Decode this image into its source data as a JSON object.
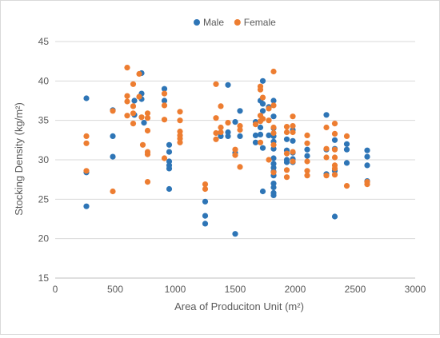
{
  "chart_data": {
    "type": "scatter",
    "title": "",
    "xlabel": "Area of Produciton Unit (m²)",
    "ylabel": "Stocking Density (kg/m²)",
    "xlim": [
      0,
      3000
    ],
    "ylim": [
      15,
      45
    ],
    "xticks": [
      "0",
      "500",
      "1000",
      "1500",
      "2000",
      "2500",
      "3000"
    ],
    "yticks": [
      "15",
      "20",
      "25",
      "30",
      "35",
      "40",
      "45"
    ],
    "grid": "horizontal",
    "legend_position": "top",
    "series": [
      {
        "name": "Male",
        "color": "#2e75b6",
        "points": [
          [
            260,
            37.8
          ],
          [
            260,
            28.4
          ],
          [
            260,
            24.1
          ],
          [
            480,
            36.3
          ],
          [
            480,
            33.0
          ],
          [
            480,
            30.4
          ],
          [
            660,
            37.5
          ],
          [
            660,
            35.7
          ],
          [
            720,
            41.0
          ],
          [
            720,
            38.4
          ],
          [
            720,
            37.7
          ],
          [
            740,
            34.7
          ],
          [
            910,
            39.0
          ],
          [
            910,
            37.5
          ],
          [
            950,
            31.9
          ],
          [
            950,
            31.0
          ],
          [
            950,
            29.8
          ],
          [
            950,
            29.3
          ],
          [
            950,
            28.9
          ],
          [
            950,
            26.3
          ],
          [
            1250,
            24.7
          ],
          [
            1250,
            22.9
          ],
          [
            1250,
            21.9
          ],
          [
            1380,
            33.0
          ],
          [
            1440,
            39.5
          ],
          [
            1440,
            33.5
          ],
          [
            1440,
            33.0
          ],
          [
            1500,
            34.8
          ],
          [
            1500,
            30.9
          ],
          [
            1500,
            20.6
          ],
          [
            1540,
            36.2
          ],
          [
            1540,
            33.0
          ],
          [
            1670,
            34.8
          ],
          [
            1670,
            33.1
          ],
          [
            1670,
            32.2
          ],
          [
            1710,
            37.5
          ],
          [
            1710,
            34.1
          ],
          [
            1710,
            33.2
          ],
          [
            1730,
            40.0
          ],
          [
            1730,
            37.1
          ],
          [
            1730,
            36.2
          ],
          [
            1730,
            31.5
          ],
          [
            1730,
            26.0
          ],
          [
            1780,
            36.7
          ],
          [
            1780,
            33.1
          ],
          [
            1820,
            37.5
          ],
          [
            1820,
            35.5
          ],
          [
            1820,
            34.0
          ],
          [
            1820,
            33.0
          ],
          [
            1820,
            32.3
          ],
          [
            1820,
            31.4
          ],
          [
            1820,
            30.2
          ],
          [
            1820,
            29.5
          ],
          [
            1820,
            29.0
          ],
          [
            1820,
            28.5
          ],
          [
            1820,
            28.0
          ],
          [
            1820,
            27.0
          ],
          [
            1820,
            26.5
          ],
          [
            1820,
            25.8
          ],
          [
            1820,
            25.5
          ],
          [
            1930,
            32.6
          ],
          [
            1930,
            31.2
          ],
          [
            1930,
            30.0
          ],
          [
            1930,
            29.7
          ],
          [
            1980,
            33.8
          ],
          [
            1980,
            32.4
          ],
          [
            1980,
            30.9
          ],
          [
            1980,
            30.1
          ],
          [
            1980,
            29.7
          ],
          [
            2100,
            31.3
          ],
          [
            2100,
            30.5
          ],
          [
            2260,
            35.7
          ],
          [
            2260,
            31.3
          ],
          [
            2260,
            28.2
          ],
          [
            2330,
            32.5
          ],
          [
            2330,
            31.4
          ],
          [
            2330,
            28.6
          ],
          [
            2330,
            22.8
          ],
          [
            2430,
            32.0
          ],
          [
            2430,
            31.3
          ],
          [
            2430,
            29.6
          ],
          [
            2600,
            31.2
          ],
          [
            2600,
            30.4
          ],
          [
            2600,
            29.3
          ],
          [
            2600,
            27.3
          ]
        ]
      },
      {
        "name": "Female",
        "color": "#ed7d31",
        "points": [
          [
            260,
            33.0
          ],
          [
            260,
            32.1
          ],
          [
            260,
            28.6
          ],
          [
            480,
            36.2
          ],
          [
            480,
            26.0
          ],
          [
            600,
            41.7
          ],
          [
            600,
            38.1
          ],
          [
            600,
            37.4
          ],
          [
            600,
            35.6
          ],
          [
            650,
            39.6
          ],
          [
            650,
            36.8
          ],
          [
            650,
            35.9
          ],
          [
            650,
            34.6
          ],
          [
            700,
            40.9
          ],
          [
            700,
            38.0
          ],
          [
            720,
            35.4
          ],
          [
            730,
            31.9
          ],
          [
            770,
            35.9
          ],
          [
            770,
            35.3
          ],
          [
            770,
            33.7
          ],
          [
            770,
            31.0
          ],
          [
            770,
            30.7
          ],
          [
            770,
            27.2
          ],
          [
            910,
            38.4
          ],
          [
            910,
            36.9
          ],
          [
            910,
            35.1
          ],
          [
            910,
            30.2
          ],
          [
            1040,
            36.1
          ],
          [
            1040,
            35.0
          ],
          [
            1040,
            33.6
          ],
          [
            1040,
            33.1
          ],
          [
            1040,
            32.7
          ],
          [
            1040,
            32.2
          ],
          [
            1250,
            26.9
          ],
          [
            1250,
            26.3
          ],
          [
            1340,
            39.6
          ],
          [
            1340,
            35.3
          ],
          [
            1340,
            33.4
          ],
          [
            1340,
            32.6
          ],
          [
            1380,
            36.8
          ],
          [
            1380,
            34.1
          ],
          [
            1380,
            33.5
          ],
          [
            1440,
            34.7
          ],
          [
            1500,
            31.3
          ],
          [
            1500,
            30.6
          ],
          [
            1540,
            34.3
          ],
          [
            1540,
            33.8
          ],
          [
            1540,
            29.1
          ],
          [
            1670,
            34.5
          ],
          [
            1710,
            39.3
          ],
          [
            1710,
            38.9
          ],
          [
            1710,
            35.6
          ],
          [
            1710,
            34.9
          ],
          [
            1710,
            32.2
          ],
          [
            1730,
            37.9
          ],
          [
            1730,
            35.2
          ],
          [
            1780,
            36.5
          ],
          [
            1780,
            35.0
          ],
          [
            1780,
            30.0
          ],
          [
            1820,
            41.2
          ],
          [
            1820,
            36.9
          ],
          [
            1820,
            34.1
          ],
          [
            1820,
            33.4
          ],
          [
            1820,
            31.9
          ],
          [
            1820,
            28.4
          ],
          [
            1930,
            34.2
          ],
          [
            1930,
            33.5
          ],
          [
            1930,
            30.8
          ],
          [
            1930,
            28.7
          ],
          [
            1930,
            27.8
          ],
          [
            1980,
            35.5
          ],
          [
            1980,
            34.3
          ],
          [
            1980,
            33.5
          ],
          [
            1980,
            31.0
          ],
          [
            1980,
            29.8
          ],
          [
            2100,
            33.1
          ],
          [
            2100,
            32.1
          ],
          [
            2100,
            29.8
          ],
          [
            2100,
            28.6
          ],
          [
            2100,
            28.0
          ],
          [
            2260,
            34.1
          ],
          [
            2260,
            31.4
          ],
          [
            2260,
            30.3
          ],
          [
            2260,
            28.0
          ],
          [
            2330,
            34.6
          ],
          [
            2330,
            33.3
          ],
          [
            2330,
            31.3
          ],
          [
            2330,
            30.3
          ],
          [
            2330,
            29.3
          ],
          [
            2330,
            28.9
          ],
          [
            2330,
            28.1
          ],
          [
            2430,
            33.0
          ],
          [
            2430,
            26.7
          ],
          [
            2600,
            27.2
          ],
          [
            2600,
            26.9
          ]
        ]
      }
    ]
  }
}
